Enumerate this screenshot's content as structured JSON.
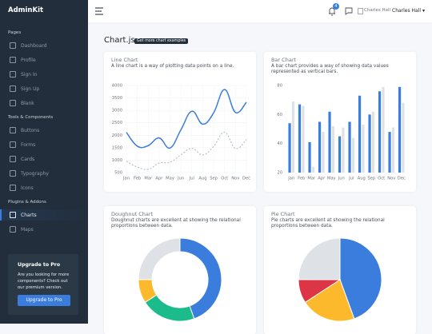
{
  "sidebar": {
    "brand": "AdminKit",
    "sections": [
      {
        "title": "Pages",
        "items": [
          "Dashboard",
          "Profile",
          "Sign In",
          "Sign Up",
          "Blank"
        ]
      },
      {
        "title": "Tools & Components",
        "items": [
          "Buttons",
          "Forms",
          "Cards",
          "Typography",
          "Icons"
        ]
      },
      {
        "title": "Plugins & Addons",
        "items": [
          "Charts",
          "Maps"
        ]
      }
    ],
    "upgrade": {
      "title": "Upgrade to Pro",
      "text": "Are you looking for more components? Check out our premium version.",
      "button": "Upgrade to Pro"
    }
  },
  "header": {
    "notifications": 4,
    "avatar_alt": "Charles Hall",
    "user": "Charles Hall"
  },
  "page": {
    "title": "Chart.js",
    "badge": "Get more chart examples"
  },
  "chart_data": [
    {
      "type": "line",
      "title": "Line Chart",
      "subtitle": "A line chart is a way of plotting data points on a line.",
      "categories": [
        "Jan",
        "Feb",
        "Mar",
        "Apr",
        "May",
        "Jun",
        "Jul",
        "Aug",
        "Sep",
        "Oct",
        "Nov",
        "Dec"
      ],
      "series": [
        {
          "color": "#3b7ddd",
          "line_style": "solid",
          "values": [
            2115,
            1562,
            1584,
            1892,
            1487,
            2223,
            2966,
            2448,
            2905,
            3838,
            2917,
            3327
          ]
        },
        {
          "color": "#adb5bd",
          "line_style": "dashed",
          "values": [
            958,
            724,
            629,
            883,
            915,
            1214,
            1476,
            1212,
            1554,
            2128,
            1466,
            1827
          ]
        }
      ],
      "ylim": [
        500,
        4000
      ],
      "yticks": [
        500,
        1000,
        1500,
        2000,
        2500,
        3000,
        3500,
        4000
      ],
      "grid": true
    },
    {
      "type": "bar",
      "title": "Bar Chart",
      "subtitle": "A bar chart provides a way of showing data values represented as vertical bars.",
      "categories": [
        "Jan",
        "Feb",
        "Mar",
        "Apr",
        "May",
        "Jun",
        "Jul",
        "Aug",
        "Sep",
        "Oct",
        "Nov",
        "Dec"
      ],
      "series": [
        {
          "color": "#3b7ddd",
          "values": [
            54,
            67,
            41,
            55,
            62,
            45,
            55,
            73,
            60,
            76,
            48,
            79
          ]
        },
        {
          "color": "#dee2e6",
          "values": [
            69,
            66,
            24,
            48,
            52,
            51,
            44,
            53,
            62,
            79,
            51,
            68
          ]
        }
      ],
      "ylim": [
        20,
        80
      ],
      "yticks": [
        20,
        40,
        60,
        80
      ],
      "grid": false
    },
    {
      "type": "doughnut",
      "title": "Doughnut Chart",
      "subtitle": "Doughnut charts are excellent at showing the relational proportions between data.",
      "values": [
        260,
        125,
        54,
        146
      ],
      "colors": [
        "#3b7ddd",
        "#1cbb8c",
        "#fcb92c",
        "#dee2e6"
      ]
    },
    {
      "type": "pie",
      "title": "Pie Chart",
      "subtitle": "Pie charts are excellent at showing the relational proportions between data.",
      "values": [
        260,
        125,
        54,
        146
      ],
      "colors": [
        "#3b7ddd",
        "#fcb92c",
        "#dc3545",
        "#dee2e6"
      ]
    }
  ]
}
